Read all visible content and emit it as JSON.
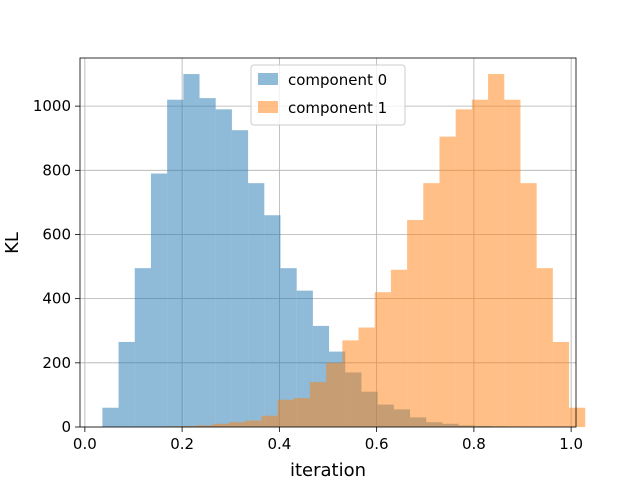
{
  "chart_data": {
    "type": "bar",
    "title": "",
    "xlabel": "iteration",
    "ylabel": "KL",
    "xlim": [
      -0.01,
      1.01
    ],
    "ylim": [
      0,
      1150
    ],
    "grid": true,
    "legend_position": "top-center",
    "xticks": [
      0.0,
      0.2,
      0.4,
      0.6,
      0.8,
      1.0
    ],
    "xtick_labels": [
      "0.0",
      "0.2",
      "0.4",
      "0.6",
      "0.8",
      "1.0"
    ],
    "yticks": [
      0,
      200,
      400,
      600,
      800,
      1000
    ],
    "ytick_labels": [
      "0",
      "200",
      "400",
      "600",
      "800",
      "1000"
    ],
    "bin_width": 0.0333,
    "series": [
      {
        "name": "component 0",
        "color": "#1f77b4",
        "alpha": 0.5,
        "bin_start": 0.036,
        "values": [
          60,
          265,
          495,
          790,
          1020,
          1100,
          1025,
          990,
          925,
          760,
          660,
          495,
          425,
          315,
          235,
          170,
          110,
          70,
          55,
          30,
          15,
          10,
          5,
          3,
          2,
          1,
          0,
          0
        ]
      },
      {
        "name": "component 1",
        "color": "#ff7f0e",
        "alpha": 0.5,
        "bin_start": 0.03,
        "values": [
          0,
          0,
          0,
          0,
          2,
          3,
          5,
          10,
          15,
          20,
          35,
          85,
          90,
          140,
          200,
          270,
          310,
          420,
          490,
          645,
          760,
          905,
          990,
          1020,
          1100,
          1020,
          760,
          495,
          265,
          60
        ]
      }
    ]
  }
}
